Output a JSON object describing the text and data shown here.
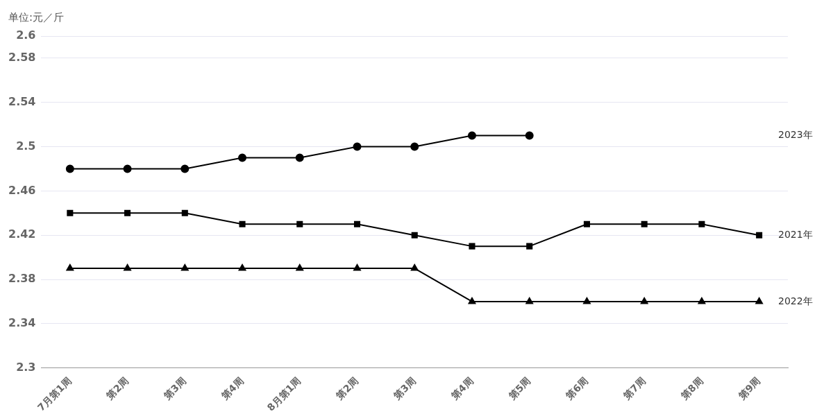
{
  "chart_data": {
    "type": "line",
    "ylabel": "单位:元／斤",
    "categories": [
      "7月第1周",
      "第2周",
      "第3周",
      "第4周",
      "8月第1周",
      "第2周",
      "第3周",
      "第4周",
      "第5周",
      "第6周",
      "第7周",
      "第8周",
      "第9周"
    ],
    "series": [
      {
        "name": "2023年",
        "color": "#000000",
        "marker": "circle",
        "values": [
          2.48,
          2.48,
          2.48,
          2.49,
          2.49,
          2.5,
          2.5,
          2.51,
          2.51,
          null,
          null,
          null,
          null
        ]
      },
      {
        "name": "2021年",
        "color": "#000000",
        "marker": "square",
        "values": [
          2.44,
          2.44,
          2.44,
          2.43,
          2.43,
          2.43,
          2.42,
          2.41,
          2.41,
          2.43,
          2.43,
          2.43,
          2.42
        ]
      },
      {
        "name": "2022年",
        "color": "#000000",
        "marker": "triangle",
        "values": [
          2.39,
          2.39,
          2.39,
          2.39,
          2.39,
          2.39,
          2.39,
          2.36,
          2.36,
          2.36,
          2.36,
          2.36,
          2.36
        ]
      }
    ],
    "ylim": [
      2.3,
      2.6
    ],
    "yticks": [
      2.3,
      2.34,
      2.38,
      2.42,
      2.46,
      2.5,
      2.54,
      2.58,
      2.6
    ],
    "grid": "y",
    "legend": false,
    "line_style": "solid"
  }
}
